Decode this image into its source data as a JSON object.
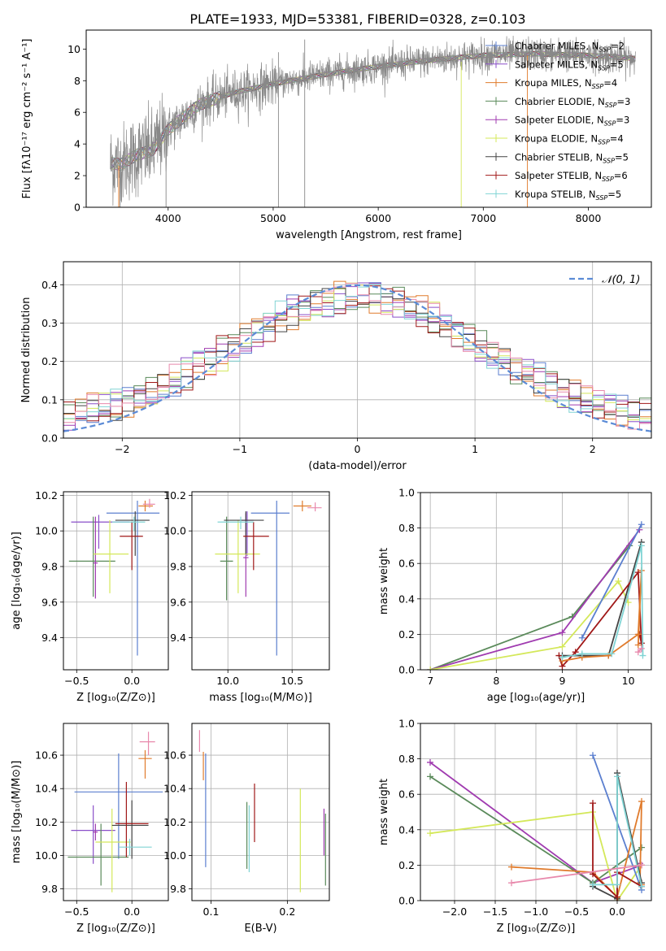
{
  "title": "PLATE=1933, MJD=53381, FIBERID=0328, z=0.103",
  "colors": {
    "chabrier_miles": "#5b7fcf",
    "salpeter_miles": "#8a4fc9",
    "kroupa_miles": "#e07b2c",
    "chabrier_elodie": "#5a8a5a",
    "salpeter_elodie": "#a03bb0",
    "kroupa_elodie": "#d4e85a",
    "chabrier_stelib": "#444444",
    "salpeter_stelib": "#a01818",
    "kroupa_stelib": "#80d4d4",
    "pink": "#e889ac",
    "data": "#888888"
  },
  "chart_data": [
    {
      "id": "spectrum",
      "type": "line",
      "xlabel": "wavelength [Angstrom, rest frame]",
      "ylabel": "Flux [fλ10⁻¹⁷ erg cm⁻² s⁻¹ A⁻¹]",
      "xlim": [
        3220,
        8600
      ],
      "ylim": [
        0,
        11.2
      ],
      "xticks": [
        "4000",
        "5000",
        "6000",
        "7000",
        "8000"
      ],
      "yticks": [
        "0",
        "2",
        "4",
        "6",
        "8",
        "10"
      ],
      "continuum": {
        "x": [
          3450,
          3550,
          3700,
          3850,
          4000,
          4300,
          4600,
          5000,
          5500,
          6000,
          6500,
          7000,
          7500,
          8000,
          8450
        ],
        "y": [
          2.8,
          2.7,
          3.3,
          3.6,
          4.9,
          6.5,
          7.2,
          7.8,
          8.4,
          8.9,
          9.3,
          9.6,
          9.7,
          9.6,
          9.4
        ]
      },
      "legend": [
        {
          "label": "Chabrier MILES, N",
          "sub": "SSP",
          "n": "=2",
          "key": "chabrier_miles"
        },
        {
          "label": "Salpeter MILES, N",
          "sub": "SSP",
          "n": "=5",
          "key": "salpeter_miles"
        },
        {
          "label": "Kroupa MILES, N",
          "sub": "SSP",
          "n": "=4",
          "key": "kroupa_miles"
        },
        {
          "label": "Chabrier ELODIE, N",
          "sub": "SSP",
          "n": "=3",
          "key": "chabrier_elodie"
        },
        {
          "label": "Salpeter ELODIE, N",
          "sub": "SSP",
          "n": "=3",
          "key": "salpeter_elodie"
        },
        {
          "label": "Kroupa ELODIE, N",
          "sub": "SSP",
          "n": "=4",
          "key": "kroupa_elodie"
        },
        {
          "label": "Chabrier STELIB, N",
          "sub": "SSP",
          "n": "=5",
          "key": "chabrier_stelib"
        },
        {
          "label": "Salpeter STELIB, N",
          "sub": "SSP",
          "n": "=6",
          "key": "salpeter_stelib"
        },
        {
          "label": "Kroupa STELIB, N",
          "sub": "SSP",
          "n": "=5",
          "key": "kroupa_stelib"
        }
      ]
    },
    {
      "id": "residuals",
      "type": "histogram",
      "xlabel": "(data-model)/error",
      "ylabel": "Normed distribution",
      "xlim": [
        -2.5,
        2.5
      ],
      "ylim": [
        0,
        0.46
      ],
      "xticks": [
        "−2",
        "−1",
        "0",
        "1",
        "2"
      ],
      "yticks": [
        "0.0",
        "0.1",
        "0.2",
        "0.3",
        "0.4"
      ],
      "legend_label": "𝒩(0, 1)",
      "bin_width": 0.1,
      "reference_curve": "normal(0,1)"
    },
    {
      "id": "age_vs_Z",
      "type": "errorbar",
      "xlabel": "Z [log₁₀(Z/Z⊙)]",
      "ylabel": "age  [log₁₀(age/yr)]",
      "xlim": [
        -0.62,
        0.33
      ],
      "ylim": [
        9.22,
        10.22
      ],
      "xticks": [
        "−0.5",
        "0.0"
      ],
      "yticks": [
        "9.4",
        "9.6",
        "9.8",
        "10.0",
        "10.2"
      ],
      "points": [
        {
          "key": "chabrier_miles",
          "x": 0.05,
          "xerr": [
            0.28,
            0.2
          ],
          "y": 10.1,
          "yerr": [
            0.8,
            0.07
          ]
        },
        {
          "key": "salpeter_miles",
          "x": -0.3,
          "xerr": [
            0.25,
            0.28
          ],
          "y": 10.05,
          "yerr": [
            0.15,
            0.04
          ]
        },
        {
          "key": "kroupa_miles",
          "x": 0.12,
          "xerr": [
            0.06,
            0.07
          ],
          "y": 10.14,
          "yerr": [
            0.03,
            0.03
          ]
        },
        {
          "key": "chabrier_elodie",
          "x": -0.35,
          "xerr": [
            0.22,
            0.2
          ],
          "y": 9.83,
          "yerr": [
            0.2,
            0.25
          ]
        },
        {
          "key": "salpeter_elodie",
          "x": -0.33,
          "xerr": [
            0.02,
            0.02
          ],
          "y": 9.82,
          "yerr": [
            0.2,
            0.26
          ]
        },
        {
          "key": "kroupa_elodie",
          "x": -0.2,
          "xerr": [
            0.15,
            0.17
          ],
          "y": 9.87,
          "yerr": [
            0.22,
            0.19
          ]
        },
        {
          "key": "chabrier_stelib",
          "x": 0.03,
          "xerr": [
            0.18,
            0.13
          ],
          "y": 10.06,
          "yerr": [
            0.2,
            0.05
          ]
        },
        {
          "key": "salpeter_stelib",
          "x": 0.0,
          "xerr": [
            0.11,
            0.1
          ],
          "y": 9.97,
          "yerr": [
            0.19,
            0.08
          ]
        },
        {
          "key": "kroupa_stelib",
          "x": 0.02,
          "xerr": [
            0.2,
            0.1
          ],
          "y": 10.05,
          "yerr": [
            0.05,
            0.03
          ]
        },
        {
          "key": "pink",
          "x": 0.16,
          "xerr": [
            0.06,
            0.05
          ],
          "y": 10.15,
          "yerr": [
            0.02,
            0.03
          ]
        }
      ]
    },
    {
      "id": "age_vs_mass",
      "type": "errorbar",
      "xlabel": "mass [log₁₀(M/M⊙)]",
      "ylabel": "",
      "xlim": [
        9.72,
        10.79
      ],
      "ylim": [
        9.22,
        10.22
      ],
      "xticks": [
        "10.0",
        "10.5"
      ],
      "yticks": [
        "9.4",
        "9.6",
        "9.8",
        "10.0",
        "10.2"
      ],
      "points": [
        {
          "key": "chabrier_miles",
          "x": 10.38,
          "xerr": [
            0.2,
            0.1
          ],
          "y": 10.1,
          "yerr": [
            0.8,
            0.07
          ]
        },
        {
          "key": "salpeter_miles",
          "x": 10.15,
          "xerr": [
            0.05,
            0.05
          ],
          "y": 10.06,
          "yerr": [
            0.2,
            0.05
          ]
        },
        {
          "key": "kroupa_miles",
          "x": 10.58,
          "xerr": [
            0.07,
            0.07
          ],
          "y": 10.14,
          "yerr": [
            0.03,
            0.03
          ]
        },
        {
          "key": "chabrier_elodie",
          "x": 9.99,
          "xerr": [
            0.05,
            0.05
          ],
          "y": 9.83,
          "yerr": [
            0.22,
            0.25
          ]
        },
        {
          "key": "salpeter_elodie",
          "x": 10.14,
          "xerr": [
            0.02,
            0.02
          ],
          "y": 9.85,
          "yerr": [
            0.22,
            0.25
          ]
        },
        {
          "key": "kroupa_elodie",
          "x": 10.08,
          "xerr": [
            0.18,
            0.17
          ],
          "y": 9.87,
          "yerr": [
            0.22,
            0.19
          ]
        },
        {
          "key": "chabrier_stelib",
          "x": 10.14,
          "xerr": [
            0.17,
            0.14
          ],
          "y": 10.06,
          "yerr": [
            0.19,
            0.05
          ]
        },
        {
          "key": "salpeter_stelib",
          "x": 10.2,
          "xerr": [
            0.08,
            0.12
          ],
          "y": 9.97,
          "yerr": [
            0.19,
            0.08
          ]
        },
        {
          "key": "kroupa_stelib",
          "x": 10.1,
          "xerr": [
            0.18,
            0.1
          ],
          "y": 10.05,
          "yerr": [
            0.04,
            0.03
          ]
        },
        {
          "key": "pink",
          "x": 10.68,
          "xerr": [
            0.06,
            0.05
          ],
          "y": 10.13,
          "yerr": [
            0.02,
            0.03
          ]
        }
      ]
    },
    {
      "id": "weight_vs_age",
      "type": "line",
      "xlabel": "age  [log₁₀(age/yr)]",
      "ylabel": "mass weight",
      "xlim": [
        6.85,
        10.35
      ],
      "ylim": [
        0,
        1
      ],
      "xticks": [
        "7",
        "8",
        "9",
        "10"
      ],
      "yticks": [
        "0.0",
        "0.2",
        "0.4",
        "0.6",
        "0.8",
        "1.0"
      ],
      "series": [
        {
          "key": "chabrier_elodie",
          "x": [
            7.0,
            9.15,
            10.02
          ],
          "y": [
            0.0,
            0.3,
            0.7
          ]
        },
        {
          "key": "salpeter_elodie",
          "x": [
            7.0,
            9.0,
            10.17
          ],
          "y": [
            0.0,
            0.21,
            0.79
          ]
        },
        {
          "key": "kroupa_elodie",
          "x": [
            7.0,
            9.0,
            9.85,
            10.0
          ],
          "y": [
            0.0,
            0.13,
            0.5,
            0.38
          ]
        },
        {
          "key": "chabrier_miles",
          "x": [
            9.3,
            10.2
          ],
          "y": [
            0.18,
            0.82
          ]
        },
        {
          "key": "chabrier_stelib",
          "x": [
            9.0,
            9.3,
            9.7,
            10.2
          ],
          "y": [
            0.08,
            0.08,
            0.08,
            0.72
          ]
        },
        {
          "key": "salpeter_stelib",
          "x": [
            8.95,
            9.0,
            9.2,
            10.15,
            10.2,
            10.17
          ],
          "y": [
            0.08,
            0.02,
            0.1,
            0.55,
            0.15,
            0.2
          ]
        },
        {
          "key": "kroupa_miles",
          "x": [
            9.0,
            9.3,
            9.7,
            10.15,
            10.2,
            10.15
          ],
          "y": [
            0.05,
            0.07,
            0.08,
            0.2,
            0.56,
            0.14
          ]
        },
        {
          "key": "kroupa_stelib",
          "x": [
            9.0,
            9.3,
            9.75,
            10.2,
            10.22
          ],
          "y": [
            0.07,
            0.09,
            0.09,
            0.7,
            0.08
          ]
        },
        {
          "key": "pink",
          "x": [
            10.15,
            10.2
          ],
          "y": [
            0.1,
            0.12
          ]
        }
      ]
    },
    {
      "id": "mass_vs_Z",
      "type": "errorbar",
      "xlabel": "Z [log₁₀(Z/Z⊙)]",
      "ylabel": "mass [log₁₀(M/M⊙)]",
      "xlim": [
        -0.62,
        0.33
      ],
      "ylim": [
        9.73,
        10.79
      ],
      "xticks": [
        "−0.5",
        "0.0"
      ],
      "yticks": [
        "9.8",
        "10.0",
        "10.2",
        "10.4",
        "10.6"
      ],
      "points": [
        {
          "key": "chabrier_miles",
          "x": -0.12,
          "xerr": [
            0.4,
            0.4
          ],
          "y": 10.38,
          "yerr": [
            0.4,
            0.23
          ]
        },
        {
          "key": "salpeter_miles",
          "x": -0.35,
          "xerr": [
            0.2,
            0.2
          ],
          "y": 10.15,
          "yerr": [
            0.2,
            0.15
          ]
        },
        {
          "key": "kroupa_miles",
          "x": 0.12,
          "xerr": [
            0.06,
            0.06
          ],
          "y": 10.58,
          "yerr": [
            0.12,
            0.05
          ]
        },
        {
          "key": "chabrier_elodie",
          "x": -0.28,
          "xerr": [
            0.3,
            0.25
          ],
          "y": 9.99,
          "yerr": [
            0.17,
            0.2
          ]
        },
        {
          "key": "salpeter_elodie",
          "x": -0.33,
          "xerr": [
            0.02,
            0.02
          ],
          "y": 10.14,
          "yerr": [
            0.05,
            0.05
          ]
        },
        {
          "key": "kroupa_elodie",
          "x": -0.18,
          "xerr": [
            0.15,
            0.17
          ],
          "y": 10.08,
          "yerr": [
            0.3,
            0.2
          ]
        },
        {
          "key": "chabrier_stelib",
          "x": 0.0,
          "xerr": [
            0.18,
            0.15
          ],
          "y": 10.18,
          "yerr": [
            0.2,
            0.15
          ]
        },
        {
          "key": "salpeter_stelib",
          "x": -0.05,
          "xerr": [
            0.1,
            0.2
          ],
          "y": 10.19,
          "yerr": [
            0.2,
            0.25
          ]
        },
        {
          "key": "kroupa_stelib",
          "x": -0.02,
          "xerr": [
            0.1,
            0.2
          ],
          "y": 10.05,
          "yerr": [
            0.05,
            0.05
          ]
        },
        {
          "key": "pink",
          "x": 0.15,
          "xerr": [
            0.08,
            0.06
          ],
          "y": 10.68,
          "yerr": [
            0.08,
            0.06
          ]
        }
      ]
    },
    {
      "id": "mass_vs_ebv",
      "type": "errorbar",
      "xlabel": "E(B-V)",
      "ylabel": "",
      "xlim": [
        0.075,
        0.255
      ],
      "ylim": [
        9.73,
        10.79
      ],
      "xticks": [
        "0.1",
        "0.2"
      ],
      "yticks": [
        "9.8",
        "10.0",
        "10.2",
        "10.4",
        "10.6"
      ],
      "points": [
        {
          "key": "chabrier_miles",
          "x": 0.093,
          "xerr": [
            0,
            0
          ],
          "y": 10.28,
          "yerr": [
            0.35,
            0.33
          ]
        },
        {
          "key": "kroupa_miles",
          "x": 0.09,
          "xerr": [
            0,
            0
          ],
          "y": 10.58,
          "yerr": [
            0.13,
            0.04
          ]
        },
        {
          "key": "chabrier_elodie",
          "x": 0.147,
          "xerr": [
            0,
            0
          ],
          "y": 10.12,
          "yerr": [
            0.2,
            0.2
          ]
        },
        {
          "key": "kroupa_stelib",
          "x": 0.15,
          "xerr": [
            0,
            0
          ],
          "y": 10.1,
          "yerr": [
            0.2,
            0.2
          ]
        },
        {
          "key": "salpeter_stelib",
          "x": 0.157,
          "xerr": [
            0,
            0
          ],
          "y": 10.25,
          "yerr": [
            0.17,
            0.18
          ]
        },
        {
          "key": "kroupa_elodie",
          "x": 0.217,
          "xerr": [
            0,
            0
          ],
          "y": 10.08,
          "yerr": [
            0.3,
            0.32
          ]
        },
        {
          "key": "salpeter_elodie",
          "x": 0.248,
          "xerr": [
            0,
            0
          ],
          "y": 10.14,
          "yerr": [
            0.14,
            0.14
          ]
        },
        {
          "key": "chabrier_elodie",
          "x": 0.25,
          "xerr": [
            0,
            0
          ],
          "y": 10.05,
          "yerr": [
            0.23,
            0.2
          ]
        },
        {
          "key": "pink",
          "x": 0.085,
          "xerr": [
            0,
            0
          ],
          "y": 10.65,
          "yerr": [
            0.03,
            0.1
          ]
        }
      ]
    },
    {
      "id": "weight_vs_Z",
      "type": "line",
      "xlabel": "Z [log₁₀(Z/Z⊙)]",
      "ylabel": "mass weight",
      "xlim": [
        -2.42,
        0.42
      ],
      "ylim": [
        0,
        1
      ],
      "xticks": [
        "−2.0",
        "−1.5",
        "−1.0",
        "−0.5",
        "0.0"
      ],
      "yticks": [
        "0.0",
        "0.2",
        "0.4",
        "0.6",
        "0.8",
        "1.0"
      ],
      "series": [
        {
          "key": "salpeter_elodie",
          "x": [
            -2.3,
            -0.3,
            0.3,
            0.28
          ],
          "y": [
            0.78,
            0.1,
            0.2,
            0.21
          ]
        },
        {
          "key": "chabrier_elodie",
          "x": [
            -2.3,
            -0.3,
            0.3
          ],
          "y": [
            0.7,
            0.1,
            0.3
          ]
        },
        {
          "key": "kroupa_elodie",
          "x": [
            -2.3,
            -0.3,
            0.0,
            0.3
          ],
          "y": [
            0.38,
            0.5,
            0.0,
            0.2
          ]
        },
        {
          "key": "chabrier_miles",
          "x": [
            -0.3,
            0.3
          ],
          "y": [
            0.82,
            0.06
          ]
        },
        {
          "key": "kroupa_miles",
          "x": [
            -1.3,
            -0.3,
            0.0,
            0.3,
            0.28,
            0.3
          ],
          "y": [
            0.19,
            0.16,
            0.02,
            0.56,
            0.1,
            0.09
          ]
        },
        {
          "key": "chabrier_stelib",
          "x": [
            -0.3,
            0.0,
            0.0,
            0.3
          ],
          "y": [
            0.08,
            0.01,
            0.72,
            0.1
          ]
        },
        {
          "key": "salpeter_stelib",
          "x": [
            -0.3,
            -0.3,
            0.0,
            0.0,
            0.3
          ],
          "y": [
            0.55,
            0.15,
            0.02,
            0.16,
            0.08
          ]
        },
        {
          "key": "kroupa_stelib",
          "x": [
            -0.3,
            0.0,
            0.0,
            0.3
          ],
          "y": [
            0.09,
            0.09,
            0.7,
            0.08
          ]
        },
        {
          "key": "pink",
          "x": [
            -1.3,
            0.3
          ],
          "y": [
            0.1,
            0.2
          ]
        }
      ]
    }
  ]
}
